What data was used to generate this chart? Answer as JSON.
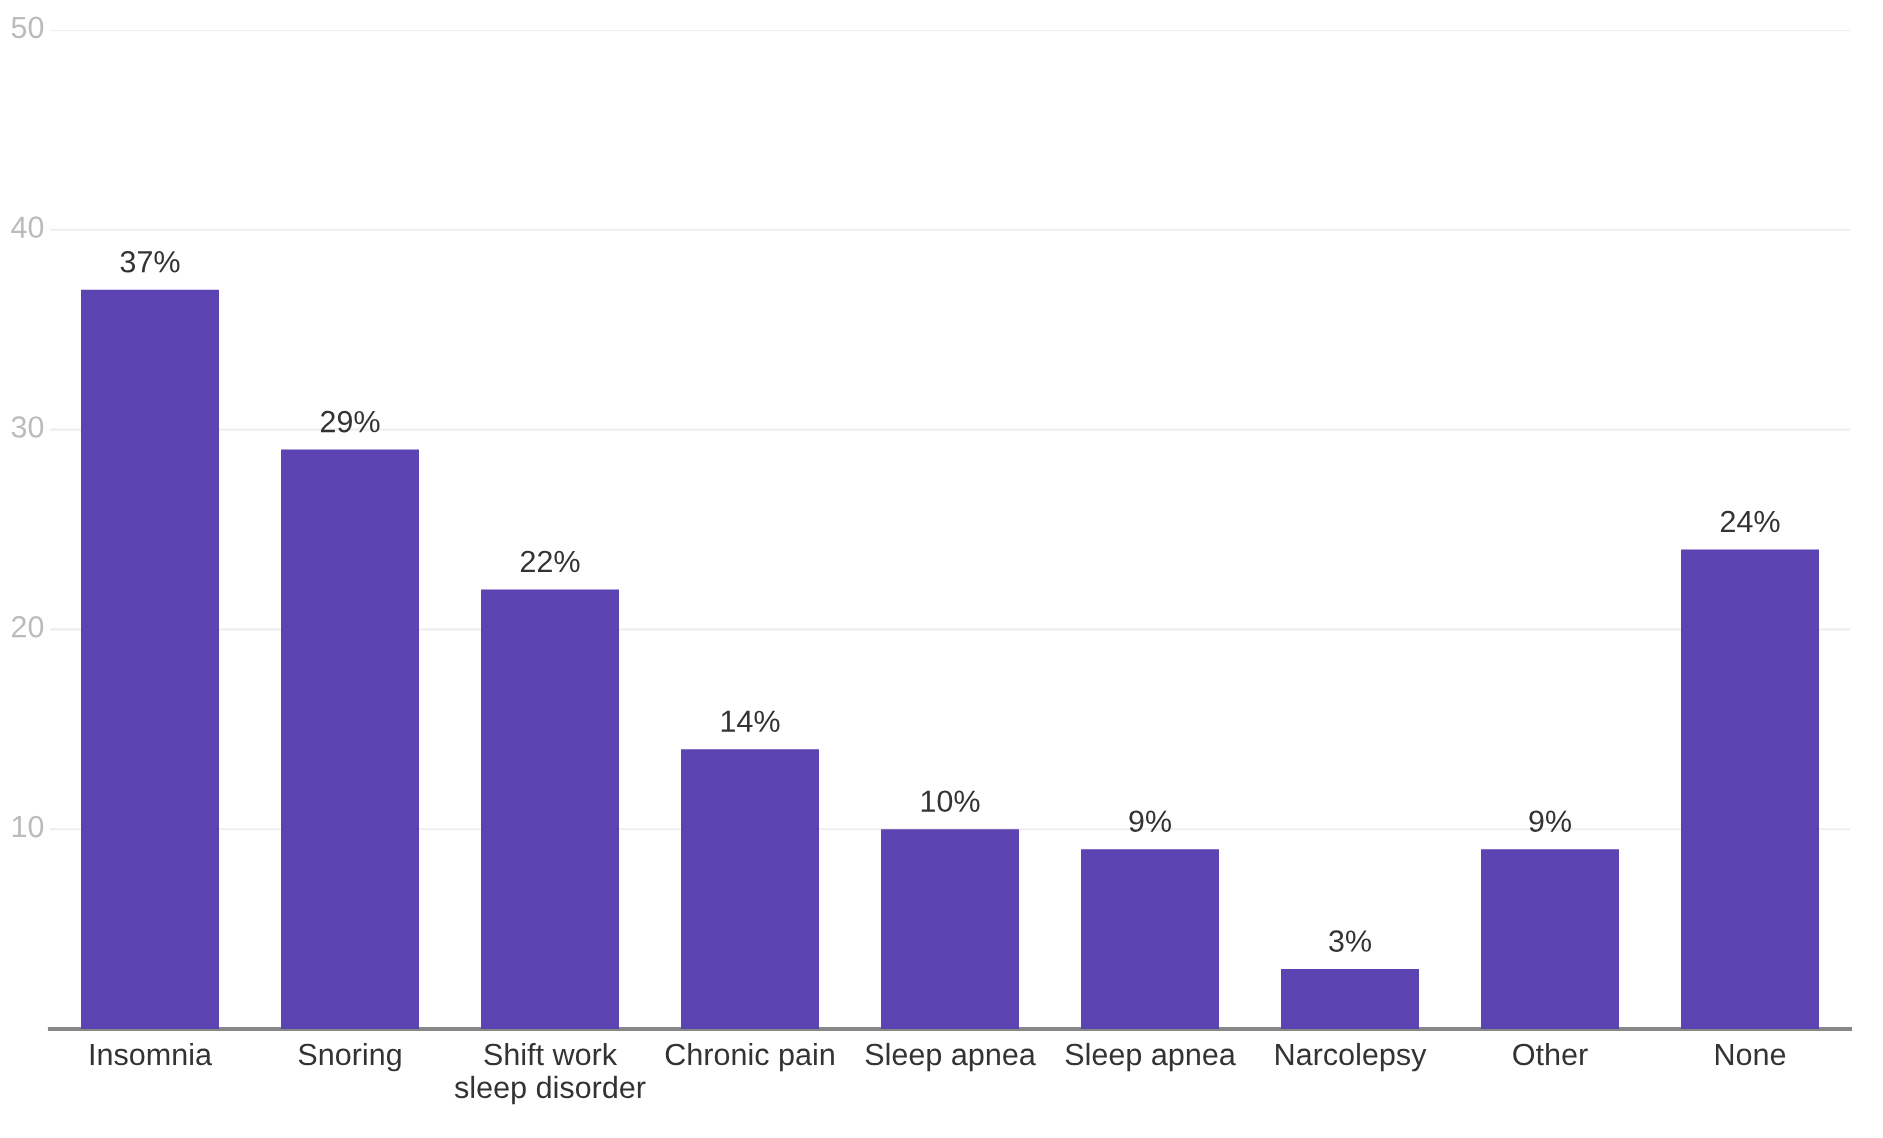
{
  "chart_data": {
    "type": "bar",
    "categories": [
      "Insomnia",
      "Snoring",
      "Shift work\nsleep disorder",
      "Chronic pain",
      "Sleep apnea",
      "Sleep apnea",
      "Narcolepsy",
      "Other",
      "None"
    ],
    "values": [
      37,
      29,
      22,
      14,
      10,
      9,
      3,
      9,
      24
    ],
    "value_labels": [
      "37%",
      "29%",
      "22%",
      "14%",
      "10%",
      "9%",
      "3%",
      "9%",
      "24%"
    ],
    "color": "#5b44b2",
    "ylim": [
      0,
      50
    ],
    "yticks": [
      10,
      20,
      30,
      40,
      50
    ],
    "grid": "y"
  }
}
